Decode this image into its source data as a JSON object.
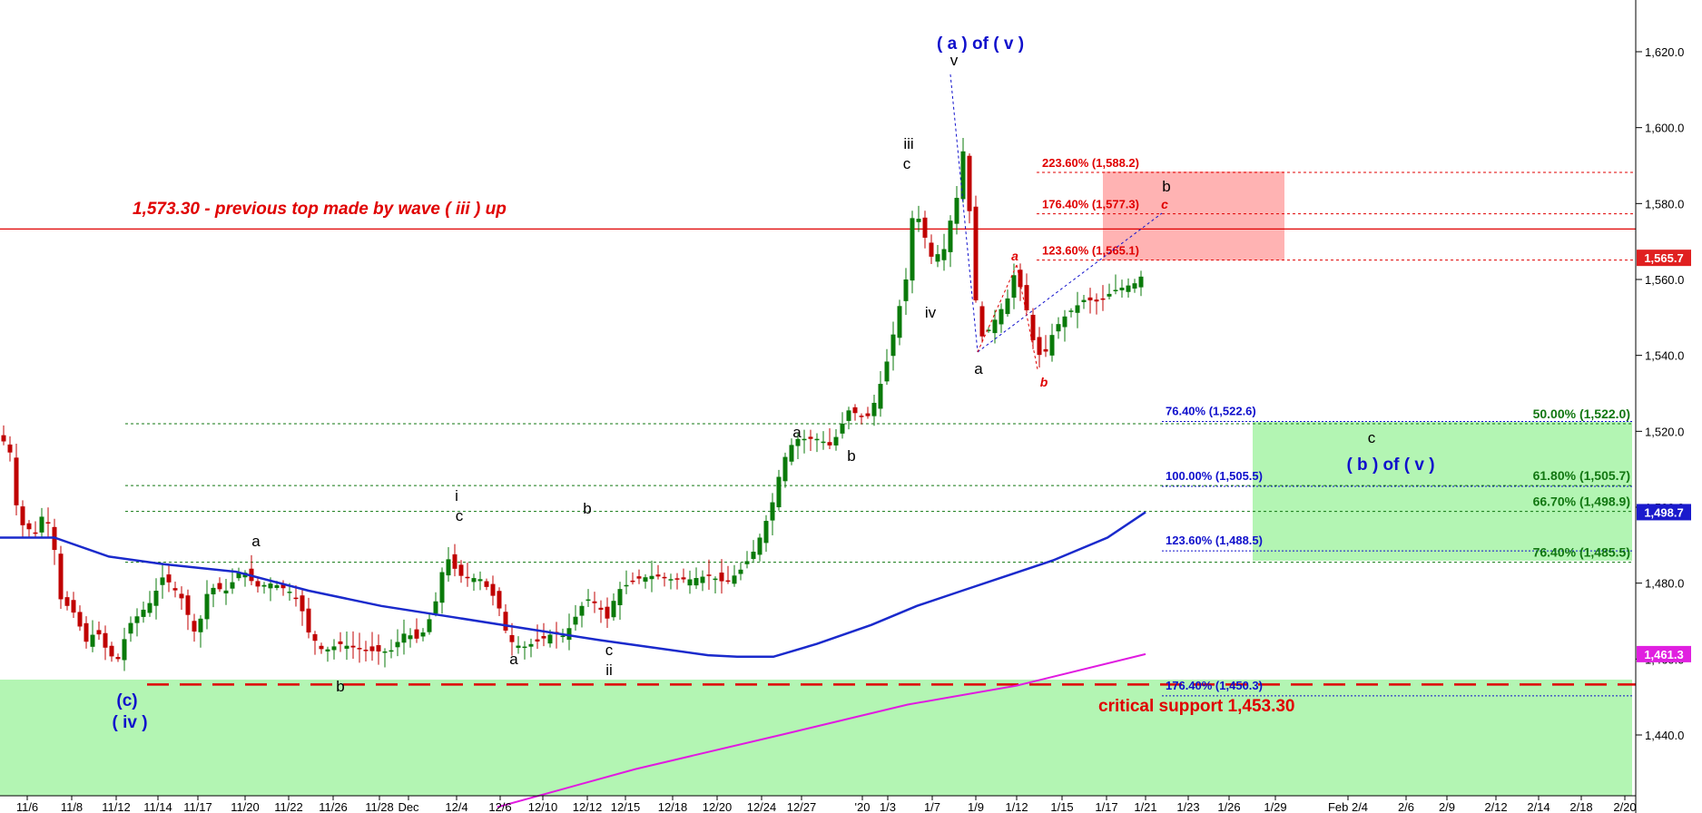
{
  "chart_data": {
    "type": "candlestick",
    "y_axis": {
      "ticks": [
        "1,440.0",
        "1,460.0",
        "1,480.0",
        "1,500.0",
        "1,520.0",
        "1,540.0",
        "1,560.0",
        "1,580.0",
        "1,600.0",
        "1,620.0"
      ],
      "tick_values": [
        1440,
        1460,
        1480,
        1500,
        1520,
        1540,
        1560,
        1580,
        1600,
        1620
      ],
      "range": [
        1422,
        1631
      ]
    },
    "x_axis": {
      "ticks": [
        "11/6",
        "11/8",
        "11/12",
        "11/14",
        "11/17",
        "11/20",
        "11/22",
        "11/26",
        "11/28",
        "Dec",
        "12/4",
        "12/6",
        "12/10",
        "12/12",
        "12/15",
        "12/18",
        "12/20",
        "12/24",
        "12/27",
        "'20",
        "1/3",
        "1/7",
        "1/9",
        "1/12",
        "1/15",
        "1/17",
        "1/21",
        "1/23",
        "1/26",
        "1/29",
        "Feb 2/4",
        "2/6",
        "2/9",
        "2/12",
        "2/14",
        "2/18",
        "2/20"
      ]
    },
    "price_tags": [
      {
        "text": "1,565.7",
        "value": 1565.7,
        "color": "#e02020"
      },
      {
        "text": "1,498.7",
        "value": 1498.7,
        "color": "#1a1acc"
      },
      {
        "text": "1,461.3",
        "value": 1461.3,
        "color": "#e020e0"
      }
    ],
    "horizontal_lines": {
      "previous_top": 1573.3,
      "critical_support": 1453.3
    },
    "annotations": {
      "previous_top": "1,573.30 - previous top made by wave ( iii ) up",
      "critical_support": "critical support 1,453.30"
    },
    "fib_red": [
      {
        "text": "223.60% (1,588.2)",
        "value": 1588.2
      },
      {
        "text": "176.40% (1,577.3)",
        "value": 1577.3
      },
      {
        "text": "123.60% (1,565.1)",
        "value": 1565.1
      }
    ],
    "fib_blue": [
      {
        "text": "76.40% (1,522.6)",
        "value": 1522.6
      },
      {
        "text": "100.00% (1,505.5)",
        "value": 1505.5
      },
      {
        "text": "123.60% (1,488.5)",
        "value": 1488.5
      },
      {
        "text": "176.40% (1,450.3)",
        "value": 1450.3
      }
    ],
    "fib_green": [
      {
        "text": "50.00% (1,522.0)",
        "value": 1522.0
      },
      {
        "text": "61.80% (1,505.7)",
        "value": 1505.7
      },
      {
        "text": "66.70% (1,498.9)",
        "value": 1498.9
      },
      {
        "text": "76.40% (1,485.5)",
        "value": 1485.5
      }
    ],
    "wave_labels": {
      "a_of_v": "( a )  of  ( v )",
      "b_of_v": "( b )  of  ( v )",
      "c_iv": "(c)",
      "iv_paren": "( iv )",
      "v": "v",
      "iii": "iii",
      "iv": "iv",
      "c": "c",
      "a": "a",
      "b": "b",
      "i": "i",
      "ii": "ii",
      "red_a": "a",
      "red_b": "b",
      "red_c": "c"
    },
    "colors": {
      "up": "#0a7a0a",
      "down": "#c00000",
      "ma_blue": "#1a2acc",
      "ma_magenta": "#e01ae0",
      "zone_red": "#ffb3b3",
      "zone_green": "#b3f5b3",
      "fib_green": "#117711"
    }
  }
}
